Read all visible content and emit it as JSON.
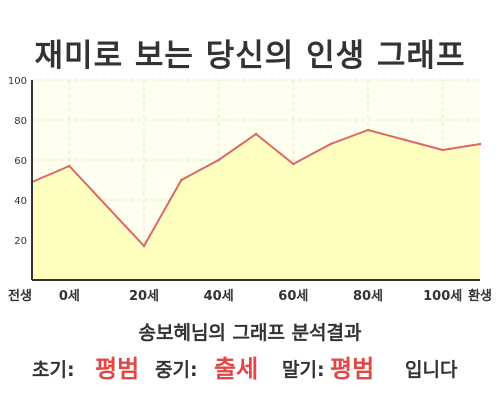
{
  "title": "재미로 보는 당신의 인생 그래프",
  "chart_data": {
    "type": "area",
    "x": [
      -10,
      0,
      20,
      30,
      40,
      50,
      60,
      70,
      80,
      90,
      100,
      110
    ],
    "values": [
      49,
      57,
      17,
      50,
      60,
      73,
      58,
      68,
      75,
      70,
      65,
      68
    ],
    "xlim": [
      -10,
      110
    ],
    "ylim": [
      0,
      100
    ],
    "y_ticks": [
      20,
      40,
      60,
      80,
      100
    ],
    "x_tick_labels": [
      {
        "x": -10,
        "label": "전생"
      },
      {
        "x": 0,
        "label": "0세"
      },
      {
        "x": 20,
        "label": "20세"
      },
      {
        "x": 40,
        "label": "40세"
      },
      {
        "x": 60,
        "label": "60세"
      },
      {
        "x": 80,
        "label": "80세"
      },
      {
        "x": 100,
        "label": "100세"
      },
      {
        "x": 110,
        "label": "환생"
      }
    ],
    "grid": true,
    "colors": {
      "line": "#e06666",
      "fill": "#ffffc0",
      "plot_bg": "#fffff0",
      "grid": "#e6e6cc"
    }
  },
  "result": {
    "heading": "송보혜님의 그래프 분석결과",
    "early_label": "초기:",
    "early_value": "평범",
    "middle_label": "중기:",
    "middle_value": "출세",
    "late_label": "말기:",
    "late_value": "평범",
    "ending": "입니다"
  }
}
